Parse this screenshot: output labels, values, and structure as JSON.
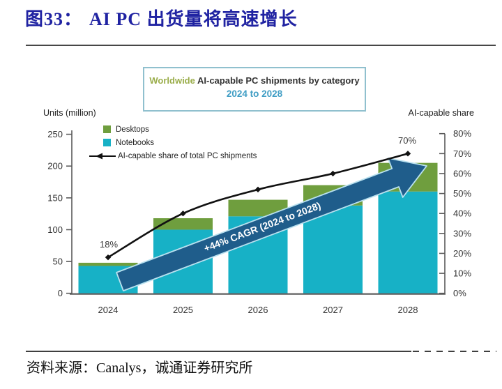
{
  "figure": {
    "label": "图33：",
    "title": "AI PC 出货量将高速增长"
  },
  "chart": {
    "title_prefix": "Worldwide",
    "title_main": "AI-capable PC shipments by category",
    "subtitle": "2024 to 2028",
    "colors": {
      "desktops": "#6f9e3e",
      "notebooks": "#17b1c6",
      "share_line": "#111111",
      "arrow_fill": "#1f5d8b",
      "arrow_edge": "#b9e1ef",
      "box_border": "#90c0ce",
      "title_prefix_color": "#9aad4a",
      "subtitle_color": "#3f9dc4",
      "figure_title_color": "#2023a2"
    }
  },
  "chart_data": {
    "type": "bar+line",
    "categories": [
      "2024",
      "2025",
      "2026",
      "2027",
      "2028"
    ],
    "series": [
      {
        "name": "Desktops",
        "type": "bar",
        "stack_order": "top",
        "color": "#6f9e3e",
        "values": [
          5,
          18,
          26,
          32,
          45
        ]
      },
      {
        "name": "Notebooks",
        "type": "bar",
        "stack_order": "bottom",
        "color": "#17b1c6",
        "values": [
          43,
          100,
          121,
          138,
          160
        ]
      },
      {
        "name": "AI-capable share of total PC shipments",
        "type": "line",
        "axis": "right",
        "unit": "%",
        "color": "#111111",
        "values": [
          18,
          40,
          52,
          60,
          70
        ]
      }
    ],
    "left_axis": {
      "label": "Units (million)",
      "min": 0,
      "max": 250,
      "step": 50
    },
    "right_axis": {
      "label": "AI-capable share",
      "min": 0,
      "max": 80,
      "step": 10,
      "unit": "%"
    },
    "annotations": [
      {
        "text": "18%",
        "target": "2024 share point"
      },
      {
        "text": "70%",
        "target": "2028 share point"
      }
    ],
    "growth_arrow": {
      "label": "+44% CAGR (2024 to 2028)"
    },
    "legend_position": "top-left",
    "grid": false
  },
  "source": "资料来源：Canalys，诚通证券研究所"
}
